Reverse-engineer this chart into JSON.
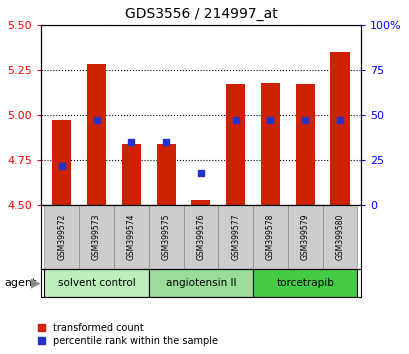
{
  "title": "GDS3556 / 214997_at",
  "samples": [
    "GSM399572",
    "GSM399573",
    "GSM399574",
    "GSM399575",
    "GSM399576",
    "GSM399577",
    "GSM399578",
    "GSM399579",
    "GSM399580"
  ],
  "red_values": [
    4.97,
    5.28,
    4.84,
    4.84,
    4.53,
    5.17,
    5.18,
    5.17,
    5.35
  ],
  "blue_values_pct": [
    22,
    47,
    35,
    35,
    18,
    47,
    47,
    47,
    47
  ],
  "ymin": 4.5,
  "ymax": 5.5,
  "yticks_left": [
    4.5,
    4.75,
    5.0,
    5.25,
    5.5
  ],
  "yticks_right": [
    0,
    25,
    50,
    75,
    100
  ],
  "bar_color": "#cc2200",
  "blue_color": "#2233cc",
  "groups": [
    {
      "label": "solvent control",
      "indices": [
        0,
        1,
        2
      ],
      "color": "#bbeebb"
    },
    {
      "label": "angiotensin II",
      "indices": [
        3,
        4,
        5
      ],
      "color": "#99dd99"
    },
    {
      "label": "torcetrapib",
      "indices": [
        6,
        7,
        8
      ],
      "color": "#44cc44"
    }
  ],
  "agent_label": "agent",
  "legend_red": "transformed count",
  "legend_blue": "percentile rank within the sample",
  "bar_width": 0.55
}
